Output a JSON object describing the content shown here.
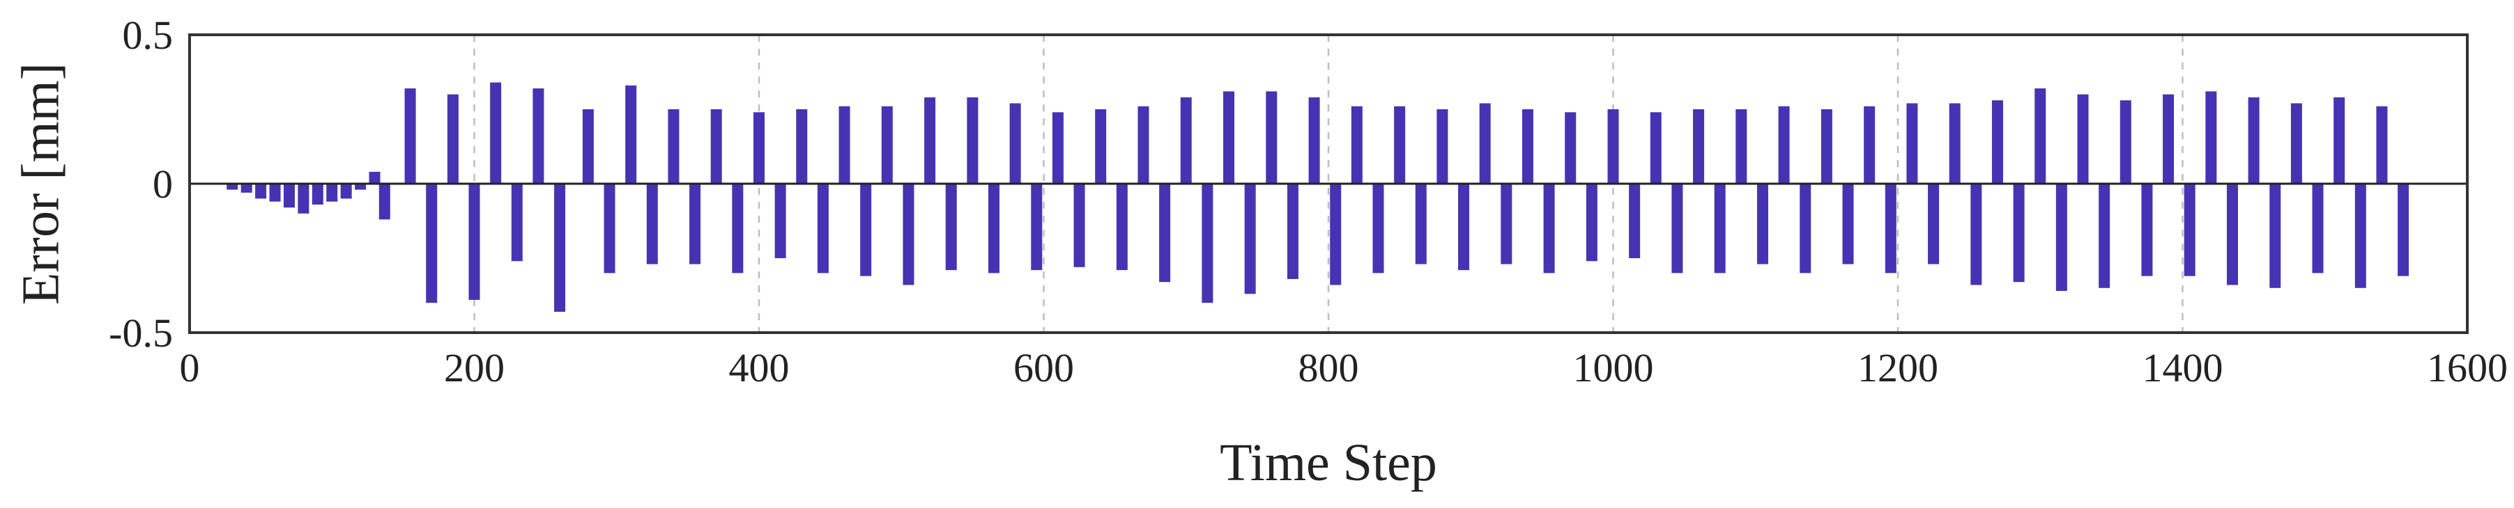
{
  "chart_data": {
    "type": "bar",
    "title": "",
    "xlabel": "Time Step",
    "ylabel": "Error [mm]",
    "xlim": [
      0,
      1600
    ],
    "ylim": [
      -0.5,
      0.5
    ],
    "xticks": [
      0,
      200,
      400,
      600,
      800,
      1000,
      1200,
      1400,
      1600
    ],
    "xtick_labels": [
      "0",
      "200",
      "400",
      "600",
      "800",
      "1000",
      "1200",
      "1400",
      "1600"
    ],
    "yticks": [
      -0.5,
      0,
      0.5
    ],
    "ytick_labels": [
      "-0.5",
      "0",
      "0.5"
    ],
    "grid": true,
    "legend": false,
    "series": [
      {
        "color": "#4633b3",
        "x": [
          30,
          40,
          50,
          60,
          70,
          80,
          90,
          100,
          110,
          120,
          130,
          137,
          155,
          170,
          185,
          200,
          215,
          230,
          245,
          260,
          280,
          295,
          310,
          325,
          340,
          355,
          370,
          385,
          400,
          415,
          430,
          445,
          460,
          475,
          490,
          505,
          520,
          535,
          550,
          565,
          580,
          595,
          610,
          625,
          640,
          655,
          670,
          685,
          700,
          715,
          730,
          745,
          760,
          775,
          790,
          805,
          820,
          835,
          850,
          865,
          880,
          895,
          910,
          925,
          940,
          955,
          970,
          985,
          1000,
          1015,
          1030,
          1045,
          1060,
          1075,
          1090,
          1105,
          1120,
          1135,
          1150,
          1165,
          1180,
          1195,
          1210,
          1225,
          1240,
          1255,
          1270,
          1285,
          1300,
          1315,
          1330,
          1345,
          1360,
          1375,
          1390,
          1405,
          1420,
          1435,
          1450,
          1465,
          1480,
          1495,
          1510,
          1525,
          1540,
          1555
        ],
        "values": [
          -0.02,
          -0.03,
          -0.05,
          -0.06,
          -0.08,
          -0.1,
          -0.07,
          -0.06,
          -0.05,
          -0.02,
          0.04,
          -0.12,
          0.32,
          -0.4,
          0.3,
          -0.39,
          0.34,
          -0.26,
          0.32,
          -0.43,
          0.25,
          -0.3,
          0.33,
          -0.27,
          0.25,
          -0.27,
          0.25,
          -0.3,
          0.24,
          -0.25,
          0.25,
          -0.3,
          0.26,
          -0.31,
          0.26,
          -0.34,
          0.29,
          -0.29,
          0.29,
          -0.3,
          0.27,
          -0.29,
          0.24,
          -0.28,
          0.25,
          -0.29,
          0.26,
          -0.33,
          0.29,
          -0.4,
          0.31,
          -0.37,
          0.31,
          -0.32,
          0.29,
          -0.34,
          0.26,
          -0.3,
          0.26,
          -0.27,
          0.25,
          -0.29,
          0.27,
          -0.27,
          0.25,
          -0.3,
          0.24,
          -0.26,
          0.25,
          -0.25,
          0.24,
          -0.3,
          0.25,
          -0.3,
          0.25,
          -0.27,
          0.26,
          -0.3,
          0.25,
          -0.27,
          0.26,
          -0.3,
          0.27,
          -0.27,
          0.27,
          -0.34,
          0.28,
          -0.33,
          0.32,
          -0.36,
          0.3,
          -0.35,
          0.28,
          -0.31,
          0.3,
          -0.31,
          0.31,
          -0.34,
          0.29,
          -0.35,
          0.27,
          -0.3,
          0.29,
          -0.35,
          0.26,
          -0.31
        ]
      }
    ]
  }
}
